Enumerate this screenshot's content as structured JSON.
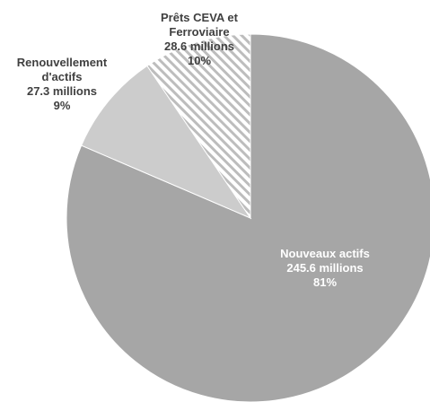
{
  "chart_data": {
    "type": "pie",
    "categories": [
      "Nouveaux actifs",
      "Renouvellement d'actifs",
      "Prêts CEVA et Ferroviaire"
    ],
    "values": [
      245.6,
      27.3,
      28.6
    ],
    "value_labels": [
      "245.6 millions",
      "27.3 millions",
      "28.6 millions"
    ],
    "percents": [
      81,
      9,
      10
    ],
    "percent_labels": [
      "81%",
      "9%",
      "10%"
    ],
    "colors": [
      "#a6a6a6",
      "#cccccc",
      "#bdbdbd"
    ],
    "patterns": [
      null,
      null,
      "diagonal-stripes"
    ]
  }
}
